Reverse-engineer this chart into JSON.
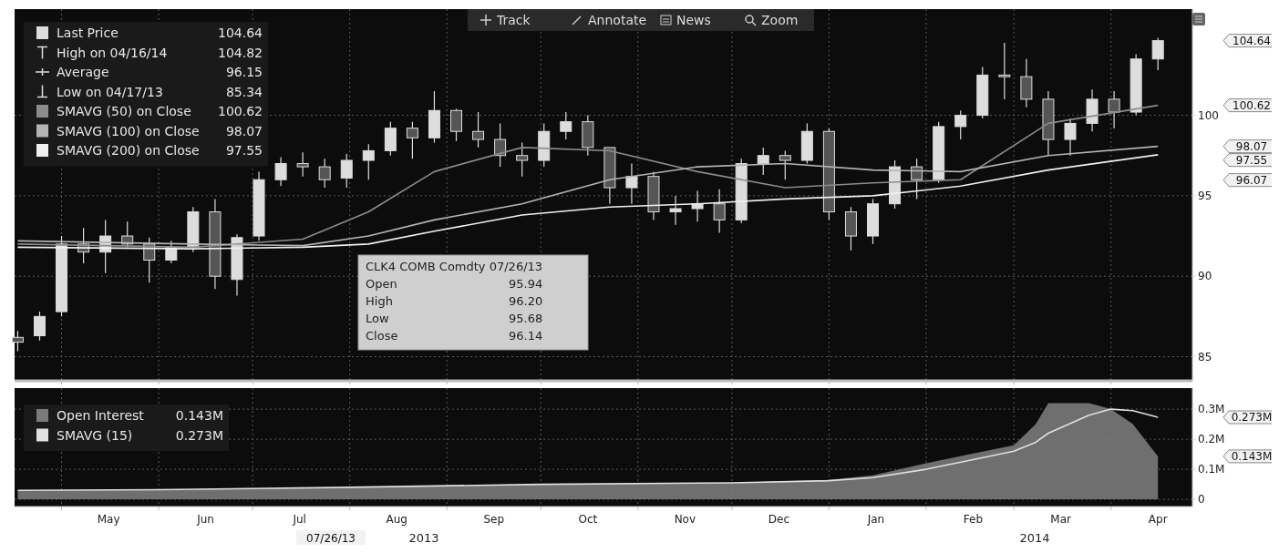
{
  "chart_data": [
    {
      "type": "candlestick",
      "legend": "top left",
      "grid": true,
      "tick_labels": "y",
      "xlim": [
        "2013-04-16",
        "2014-04-27"
      ],
      "ylim": [
        83.5,
        106.6
      ],
      "yticks": [
        85,
        90,
        95,
        100
      ],
      "xticks": [
        {
          "value": "2013-05-01",
          "label": null
        },
        {
          "value": "2013-06-01",
          "label": null
        },
        {
          "value": "2013-07-01",
          "label": null
        },
        {
          "value": "2013-08-01",
          "label": null
        },
        {
          "value": "2013-09-01",
          "label": null
        },
        {
          "value": "2013-10-01",
          "label": null
        },
        {
          "value": "2013-11-01",
          "label": null
        },
        {
          "value": "2013-12-01",
          "label": null
        },
        {
          "value": "2014-01-01",
          "label": null
        },
        {
          "value": "2014-02-01",
          "label": null
        },
        {
          "value": "2014-03-01",
          "label": null
        },
        {
          "value": "2014-04-01",
          "label": null
        }
      ],
      "series": [
        {
          "name": "Last Price",
          "color": "#dddddd",
          "x": [
            "2013-04-17",
            "2013-04-24",
            "2013-05-01",
            "2013-05-08",
            "2013-05-15",
            "2013-05-22",
            "2013-05-29",
            "2013-06-05",
            "2013-06-12",
            "2013-06-19",
            "2013-06-26",
            "2013-07-03",
            "2013-07-10",
            "2013-07-17",
            "2013-07-24",
            "2013-07-31",
            "2013-08-07",
            "2013-08-14",
            "2013-08-21",
            "2013-08-28",
            "2013-09-04",
            "2013-09-11",
            "2013-09-18",
            "2013-09-25",
            "2013-10-02",
            "2013-10-09",
            "2013-10-16",
            "2013-10-23",
            "2013-10-30",
            "2013-11-06",
            "2013-11-13",
            "2013-11-20",
            "2013-11-27",
            "2013-12-04",
            "2013-12-11",
            "2013-12-18",
            "2013-12-25",
            "2014-01-01",
            "2014-01-08",
            "2014-01-15",
            "2014-01-22",
            "2014-01-29",
            "2014-02-05",
            "2014-02-12",
            "2014-02-19",
            "2014-02-26",
            "2014-03-05",
            "2014-03-12",
            "2014-03-19",
            "2014-03-26",
            "2014-04-02",
            "2014-04-09",
            "2014-04-16"
          ],
          "ohlc": [
            [
              86.2,
              86.6,
              85.34,
              85.9
            ],
            [
              86.3,
              87.8,
              86.0,
              87.5
            ],
            [
              87.8,
              92.5,
              87.5,
              92.0
            ],
            [
              92.0,
              93.0,
              90.8,
              91.5
            ],
            [
              91.5,
              93.5,
              90.2,
              92.5
            ],
            [
              92.5,
              93.4,
              91.8,
              92.0
            ],
            [
              92.0,
              92.4,
              89.6,
              91.0
            ],
            [
              91.0,
              92.2,
              90.8,
              91.8
            ],
            [
              91.8,
              94.3,
              91.5,
              94.0
            ],
            [
              94.0,
              94.8,
              89.2,
              90.0
            ],
            [
              89.8,
              92.6,
              88.8,
              92.4
            ],
            [
              92.5,
              96.5,
              92.2,
              96.0
            ],
            [
              96.0,
              97.4,
              95.6,
              97.0
            ],
            [
              97.0,
              97.7,
              96.2,
              96.8
            ],
            [
              96.8,
              97.3,
              95.5,
              96.0
            ],
            [
              96.1,
              97.6,
              95.5,
              97.2
            ],
            [
              97.2,
              98.2,
              96.0,
              97.8
            ],
            [
              97.8,
              99.6,
              97.5,
              99.2
            ],
            [
              99.2,
              99.6,
              97.3,
              98.6
            ],
            [
              98.6,
              101.5,
              98.3,
              100.3
            ],
            [
              100.3,
              100.4,
              98.4,
              99.0
            ],
            [
              99.0,
              100.2,
              98.0,
              98.5
            ],
            [
              98.5,
              99.5,
              96.8,
              97.5
            ],
            [
              97.5,
              98.3,
              96.2,
              97.2
            ],
            [
              97.2,
              99.5,
              96.8,
              99.0
            ],
            [
              99.0,
              100.2,
              98.5,
              99.6
            ],
            [
              99.6,
              100.0,
              97.5,
              98.0
            ],
            [
              98.0,
              98.0,
              94.5,
              95.5
            ],
            [
              95.5,
              97.0,
              94.5,
              96.2
            ],
            [
              96.2,
              96.5,
              93.5,
              94.0
            ],
            [
              94.0,
              95.0,
              93.2,
              94.2
            ],
            [
              94.2,
              95.3,
              93.4,
              94.5
            ],
            [
              94.5,
              95.4,
              92.7,
              93.5
            ],
            [
              93.5,
              97.3,
              93.3,
              97.0
            ],
            [
              97.0,
              98.0,
              96.3,
              97.5
            ],
            [
              97.5,
              97.8,
              96.0,
              97.2
            ],
            [
              97.2,
              99.5,
              97.0,
              99.0
            ],
            [
              99.0,
              99.2,
              93.5,
              94.0
            ],
            [
              94.0,
              94.3,
              91.6,
              92.5
            ],
            [
              92.5,
              94.8,
              92.0,
              94.5
            ],
            [
              94.5,
              97.2,
              94.2,
              96.8
            ],
            [
              96.8,
              97.3,
              94.8,
              96.0
            ],
            [
              96.0,
              99.6,
              95.8,
              99.3
            ],
            [
              99.3,
              100.3,
              98.5,
              100.0
            ],
            [
              100.0,
              103.0,
              99.8,
              102.5
            ],
            [
              102.5,
              104.5,
              101.0,
              102.4
            ],
            [
              102.4,
              103.5,
              100.5,
              101.0
            ],
            [
              101.0,
              101.5,
              97.5,
              98.5
            ],
            [
              98.5,
              99.8,
              97.5,
              99.5
            ],
            [
              99.5,
              101.6,
              99.0,
              101.0
            ],
            [
              101.0,
              101.5,
              99.2,
              100.2
            ],
            [
              100.2,
              103.8,
              100.0,
              103.5
            ],
            [
              103.5,
              104.82,
              102.8,
              104.64
            ]
          ]
        },
        {
          "type": "line",
          "name": "SMAVG (50) on Close",
          "color": "#8c8c8c",
          "x": [
            "2013-04-17",
            "2013-06-12",
            "2013-07-17",
            "2013-08-07",
            "2013-08-28",
            "2013-09-25",
            "2013-10-23",
            "2013-11-20",
            "2013-12-18",
            "2014-01-15",
            "2014-02-12",
            "2014-03-12",
            "2014-04-16"
          ],
          "values": [
            92.0,
            91.8,
            92.3,
            94.0,
            96.5,
            98.0,
            97.8,
            96.5,
            95.5,
            95.8,
            96.0,
            99.5,
            100.62
          ]
        },
        {
          "type": "line",
          "name": "SMAVG (100) on Close",
          "color": "#b4b4b4",
          "x": [
            "2013-04-17",
            "2013-06-12",
            "2013-07-17",
            "2013-08-07",
            "2013-08-28",
            "2013-09-25",
            "2013-10-23",
            "2013-11-20",
            "2013-12-18",
            "2014-01-15",
            "2014-02-12",
            "2014-03-12",
            "2014-04-16"
          ],
          "values": [
            92.2,
            92.0,
            91.9,
            92.5,
            93.5,
            94.5,
            96.0,
            96.8,
            97.0,
            96.6,
            96.5,
            97.5,
            98.07
          ]
        },
        {
          "type": "line",
          "name": "SMAVG (200) on Close",
          "color": "#f0f0f0",
          "x": [
            "2013-04-17",
            "2013-06-12",
            "2013-07-17",
            "2013-08-07",
            "2013-08-28",
            "2013-09-25",
            "2013-10-23",
            "2013-11-20",
            "2013-12-18",
            "2014-01-15",
            "2014-02-12",
            "2014-03-12",
            "2014-04-16"
          ],
          "values": [
            91.8,
            91.7,
            91.8,
            92.0,
            92.8,
            93.8,
            94.3,
            94.5,
            94.8,
            95.0,
            95.6,
            96.6,
            97.55
          ]
        }
      ],
      "annotations": [
        "104.64",
        "High on 04/16/14",
        "104.82",
        "Average",
        "96.15",
        "Low on 04/17/13",
        "85.34",
        "100.62",
        "98.07",
        "97.55",
        "104.64",
        "100.62",
        "98.07",
        "97.55",
        "96.07",
        "CLK4 COMB Comdty 07/26/13",
        "Open",
        "95.94",
        "High",
        "96.20",
        "Low",
        "95.68",
        "Close",
        "96.14",
        "Track",
        "Annotate",
        "News",
        "Zoom"
      ]
    },
    {
      "type": "area",
      "legend": "top left",
      "grid": true,
      "xlim": [
        "2013-04-16",
        "2014-04-27"
      ],
      "ylim": [
        -0.024,
        0.37
      ],
      "yticks": [
        0,
        {
          "value": 0.1,
          "label": "0.1M"
        },
        {
          "value": 0.2,
          "label": "0.2M"
        },
        {
          "value": 0.3,
          "label": "0.3M"
        }
      ],
      "xticks": [
        {
          "value": "2013-05-01",
          "label": null
        },
        {
          "value": "2013-05-16",
          "label": "May"
        },
        {
          "value": "2013-06-01",
          "label": null
        },
        {
          "value": "2013-06-16",
          "label": "Jun"
        },
        {
          "value": "2013-07-01",
          "label": null
        },
        {
          "value": "2013-07-16",
          "label": "Jul"
        },
        {
          "value": "2013-08-01",
          "label": null
        },
        {
          "value": "2013-08-16",
          "label": "Aug"
        },
        {
          "value": "2013-09-01",
          "label": null
        },
        {
          "value": "2013-09-16",
          "label": "Sep"
        },
        {
          "value": "2013-10-01",
          "label": null
        },
        {
          "value": "2013-10-16",
          "label": "Oct"
        },
        {
          "value": "2013-11-01",
          "label": null
        },
        {
          "value": "2013-11-16",
          "label": "Nov"
        },
        {
          "value": "2013-12-01",
          "label": null
        },
        {
          "value": "2013-12-16",
          "label": "Dec"
        },
        {
          "value": "2014-01-01",
          "label": null
        },
        {
          "value": "2014-01-16",
          "label": "Jan"
        },
        {
          "value": "2014-02-01",
          "label": null
        },
        {
          "value": "2014-02-16",
          "label": "Feb"
        },
        {
          "value": "2014-03-01",
          "label": null
        },
        {
          "value": "2014-03-16",
          "label": "Mar"
        },
        {
          "value": "2014-04-01",
          "label": null
        },
        {
          "value": "2014-04-16",
          "label": "Apr"
        }
      ],
      "series": [
        {
          "name": "Open Interest",
          "color": "#7a7a7a",
          "x": [
            "2013-04-17",
            "2013-06-01",
            "2013-08-01",
            "2013-10-01",
            "2013-12-01",
            "2014-01-01",
            "2014-01-15",
            "2014-02-01",
            "2014-02-15",
            "2014-03-01",
            "2014-03-08",
            "2014-03-12",
            "2014-03-25",
            "2014-04-01",
            "2014-04-08",
            "2014-04-16"
          ],
          "values": [
            0.03,
            0.032,
            0.04,
            0.05,
            0.055,
            0.065,
            0.08,
            0.12,
            0.15,
            0.18,
            0.25,
            0.32,
            0.32,
            0.3,
            0.25,
            0.143
          ]
        },
        {
          "type": "line",
          "name": "SMAVG (15)",
          "color": "#e0e0e0",
          "x": [
            "2013-04-17",
            "2013-06-01",
            "2013-08-01",
            "2013-10-01",
            "2013-12-01",
            "2014-01-01",
            "2014-01-15",
            "2014-02-01",
            "2014-02-15",
            "2014-03-01",
            "2014-03-08",
            "2014-03-12",
            "2014-03-25",
            "2014-04-01",
            "2014-04-08",
            "2014-04-16"
          ],
          "values": [
            0.03,
            0.032,
            0.04,
            0.05,
            0.055,
            0.062,
            0.072,
            0.1,
            0.13,
            0.16,
            0.19,
            0.22,
            0.28,
            0.3,
            0.295,
            0.273
          ]
        }
      ],
      "annotations": [
        "0.143M",
        "0.273M",
        "0.273M",
        "0.143M",
        "07/26/13",
        "2013",
        "2014"
      ]
    }
  ]
}
